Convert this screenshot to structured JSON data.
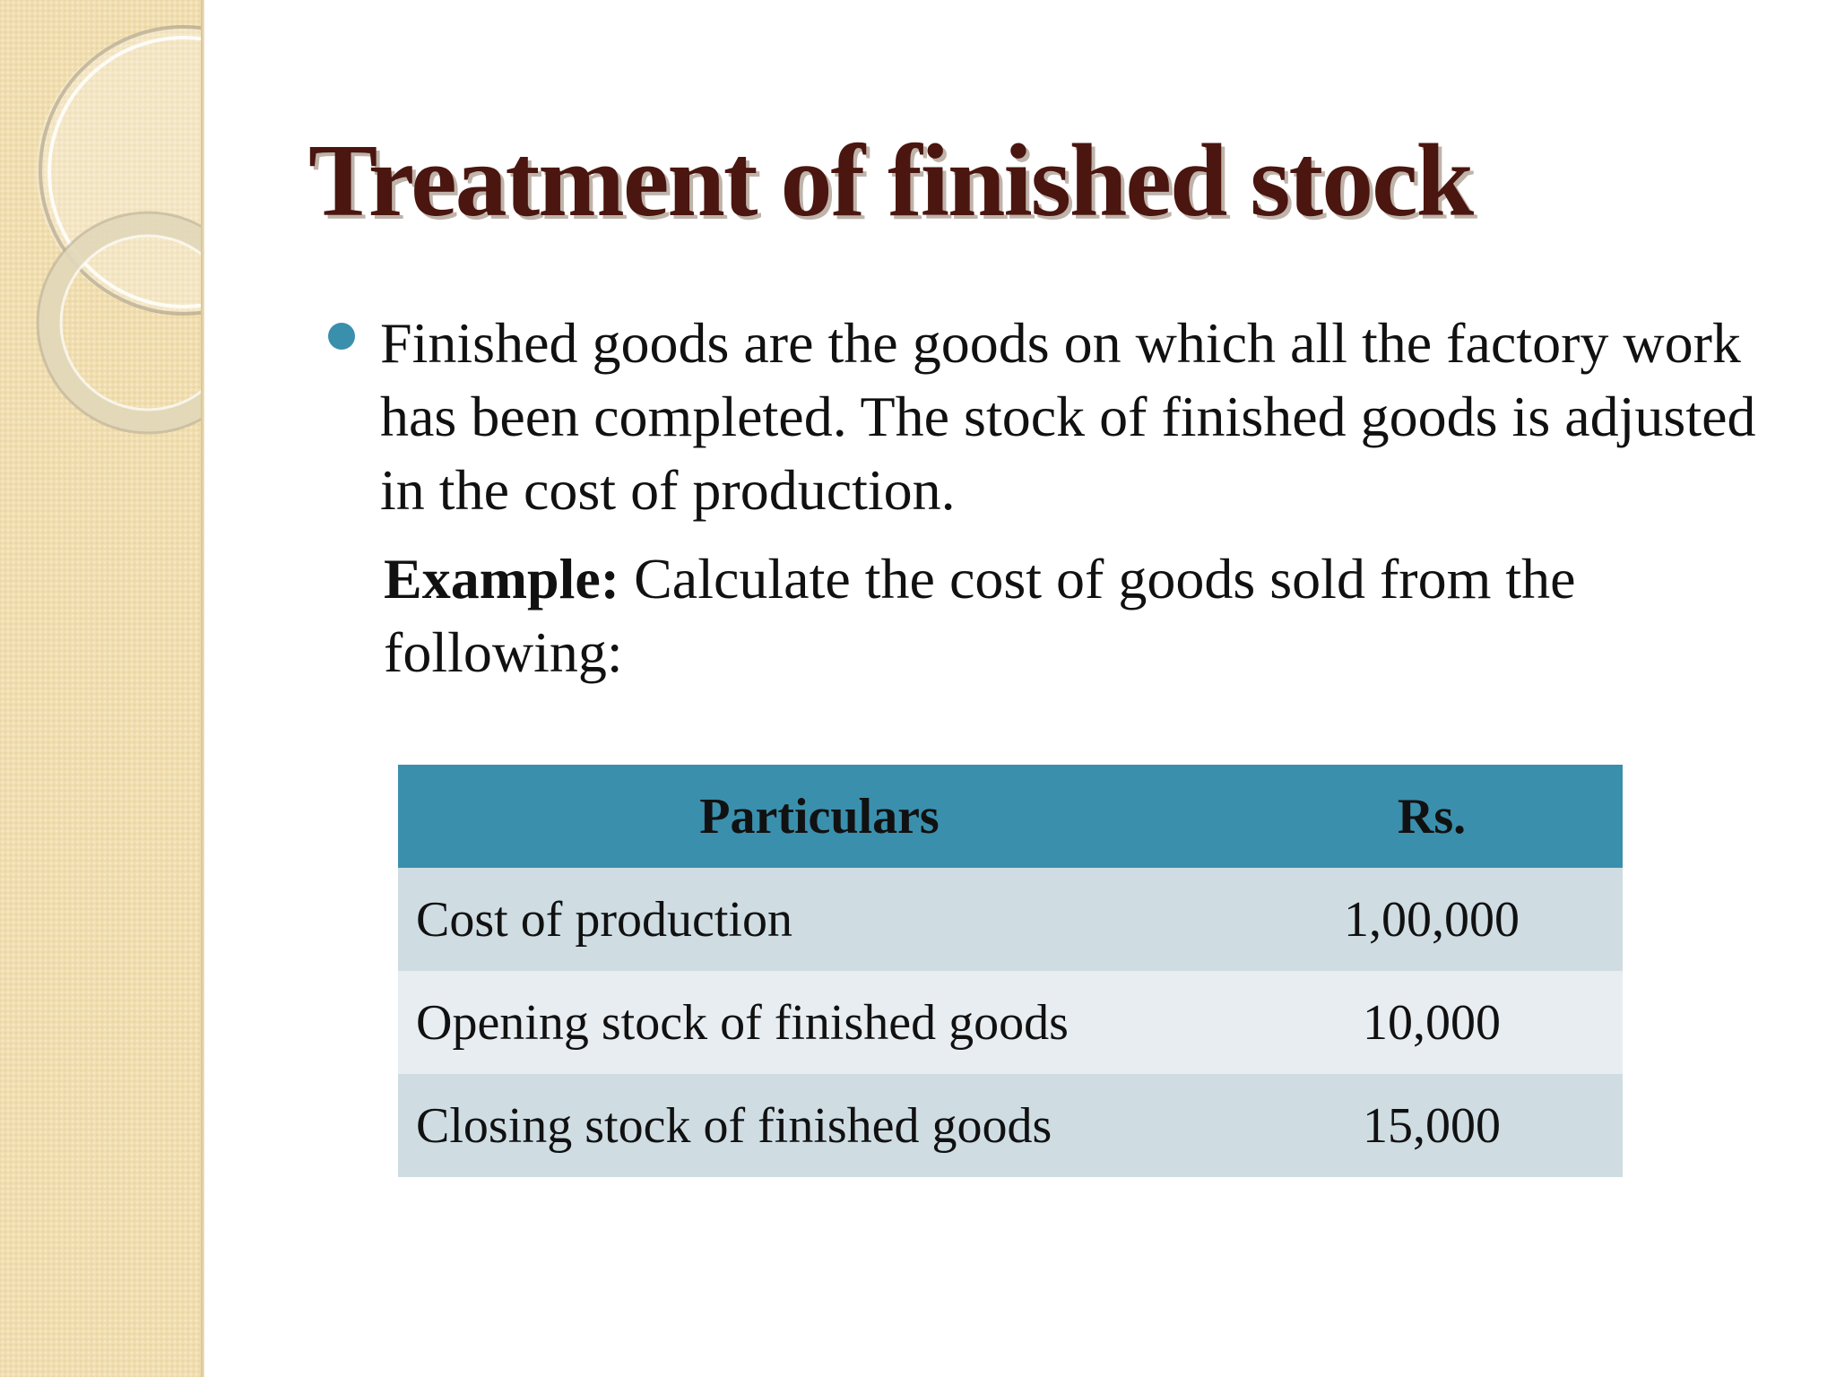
{
  "slide": {
    "title": "Treatment of finished stock",
    "bullet_text": "Finished goods are the goods on which all the factory work has been completed. The stock of finished goods is adjusted in the cost of production.",
    "example_label": "Example:",
    "example_text": " Calculate the cost of goods sold from the following:"
  },
  "table": {
    "headers": [
      "Particulars",
      "Rs."
    ],
    "rows": [
      {
        "particular": "Cost of production",
        "amount": "1,00,000"
      },
      {
        "particular": "Opening stock of finished goods",
        "amount": "10,000"
      },
      {
        "particular": "Closing stock of finished goods",
        "amount": "15,000"
      }
    ]
  },
  "colors": {
    "title": "#4a160f",
    "accent": "#3a8fad",
    "side_band": "#f1deb0",
    "row_dark": "#cfdde3",
    "row_light": "#e8edf1"
  }
}
